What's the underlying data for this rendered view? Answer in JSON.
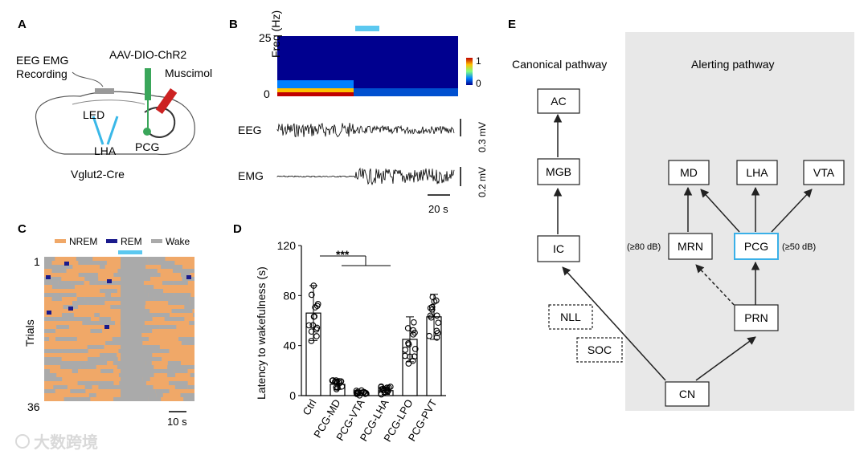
{
  "panels": {
    "A": {
      "label": "A",
      "eeg_emg_line1": "EEG EMG",
      "eeg_emg_line2": "Recording",
      "virus": "AAV-DIO-ChR2",
      "drug": "Muscimol",
      "led": "LED",
      "lha": "LHA",
      "pcg": "PCG",
      "mouse_line": "Vglut2-Cre"
    },
    "B": {
      "label": "B",
      "freq_label": "Freq (Hz)",
      "freq_max": "25",
      "freq_min": "0",
      "cbar_max": "1",
      "cbar_min": "0",
      "eeg_label": "EEG",
      "emg_label": "EMG",
      "eeg_scale": "0.3 mV",
      "emg_scale": "0.2 mV",
      "time_scale": "20 s"
    },
    "C": {
      "label": "C",
      "legend": [
        "NREM",
        "REM",
        "Wake"
      ],
      "ylabel": "Trials",
      "trial_first": "1",
      "trial_last": "36",
      "time_scale": "10 s"
    },
    "D": {
      "label": "D",
      "significance": "***"
    },
    "E": {
      "label": "E",
      "canonical_title": "Canonical pathway",
      "alerting_title": "Alerting pathway",
      "nodes": {
        "AC": "AC",
        "MGB": "MGB",
        "IC": "IC",
        "NLL": "NLL",
        "SOC": "SOC",
        "CN": "CN",
        "MD": "MD",
        "LHA": "LHA",
        "VTA": "VTA",
        "MRN": "MRN",
        "PCG": "PCG",
        "PRN": "PRN"
      },
      "mrn_threshold": "(≥80 dB)",
      "pcg_threshold": "(≥50 dB)"
    }
  },
  "chart_data": {
    "type": "bar",
    "title": "",
    "xlabel": "",
    "ylabel": "Latency to wakefulness (s)",
    "ylim": [
      0,
      120
    ],
    "yticks": [
      "0",
      "40",
      "80",
      "120"
    ],
    "categories": [
      "Ctrl",
      "PCG-MD",
      "PCG-VTA",
      "PCG-LHA",
      "PCG-LPO",
      "PCG-PVT"
    ],
    "values": [
      66,
      9,
      2,
      4,
      45,
      63
    ],
    "errors": [
      22,
      4,
      2,
      3,
      18,
      18
    ]
  },
  "watermark": "大数跨境"
}
